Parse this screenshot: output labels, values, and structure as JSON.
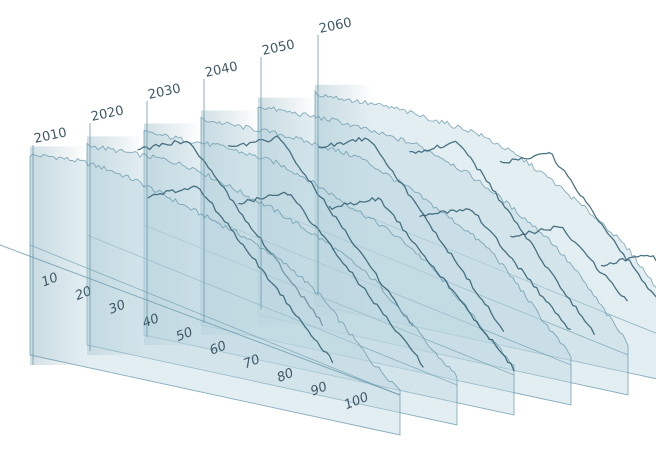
{
  "chart_data": {
    "type": "area",
    "title": "",
    "xlabel": "",
    "ylabel": "",
    "age_ticks": [
      "10",
      "20",
      "30",
      "40",
      "50",
      "60",
      "70",
      "80",
      "90",
      "100"
    ],
    "age_range": [
      0,
      110
    ],
    "series": [
      {
        "name": "2010",
        "age_peaks": [
          50
        ],
        "envelope": [
          62,
          68,
          72,
          74,
          74,
          72,
          70,
          68,
          66,
          62,
          56,
          46,
          30,
          14,
          4
        ]
      },
      {
        "name": "2020",
        "age_peaks": [
          30,
          60
        ],
        "envelope": [
          62,
          66,
          70,
          74,
          76,
          74,
          72,
          70,
          66,
          62,
          56,
          48,
          34,
          18,
          6
        ]
      },
      {
        "name": "2030",
        "age_peaks": [
          40,
          70
        ],
        "envelope": [
          64,
          68,
          72,
          76,
          78,
          80,
          78,
          74,
          70,
          66,
          60,
          50,
          36,
          20,
          6
        ]
      },
      {
        "name": "2040",
        "age_peaks": [
          50,
          80
        ],
        "envelope": [
          66,
          70,
          74,
          78,
          80,
          82,
          84,
          80,
          76,
          70,
          64,
          56,
          40,
          22,
          6
        ]
      },
      {
        "name": "2050",
        "age_peaks": [
          60,
          90
        ],
        "envelope": [
          68,
          72,
          76,
          80,
          82,
          84,
          86,
          84,
          80,
          74,
          66,
          58,
          44,
          26,
          8
        ]
      },
      {
        "name": "2060",
        "age_peaks": [
          70,
          100
        ],
        "envelope": [
          70,
          74,
          78,
          82,
          84,
          86,
          88,
          86,
          82,
          76,
          68,
          60,
          48,
          30,
          10
        ]
      }
    ]
  },
  "colors": {
    "fill": "#bcd6df",
    "ridge": "#2f5d70",
    "edge": "#6a9aab",
    "wall": "#4f8699",
    "text": "#3f5966"
  }
}
